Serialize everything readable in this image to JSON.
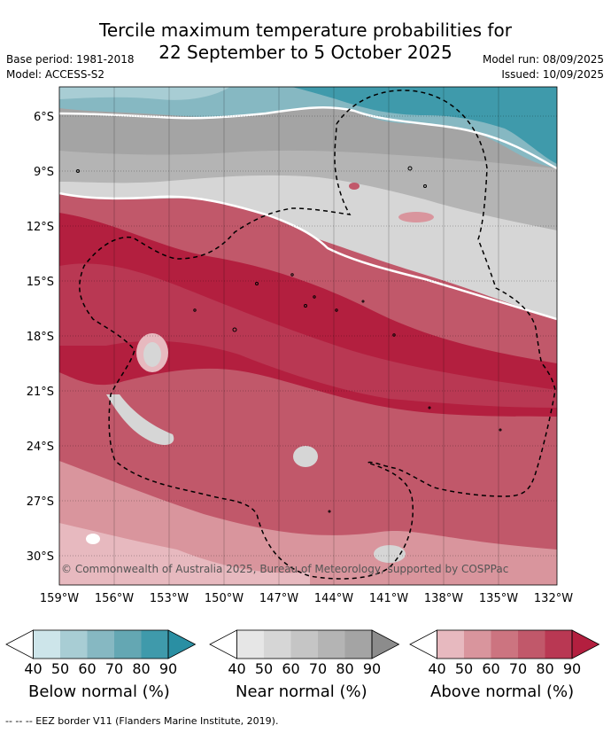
{
  "title": {
    "line1": "Tercile maximum temperature probabilities for",
    "line2": "22 September to 5 October 2025"
  },
  "meta": {
    "base_period": "Base period: 1981-2018",
    "model": "Model: ACCESS-S2",
    "model_run": "Model run: 08/09/2025",
    "issued": "Issued: 10/09/2025"
  },
  "map": {
    "lat_labels": [
      "6°S",
      "9°S",
      "12°S",
      "15°S",
      "18°S",
      "21°S",
      "24°S",
      "27°S",
      "30°S"
    ],
    "lon_labels": [
      "159°W",
      "156°W",
      "153°W",
      "150°W",
      "147°W",
      "144°W",
      "141°W",
      "138°W",
      "135°W",
      "132°W"
    ],
    "copyright": "© Commonwealth of Australia 2025, Bureau of Meteorology, supported by COSPPac"
  },
  "colorbars": [
    {
      "label": "Below normal (%)",
      "ticks": [
        "40",
        "50",
        "60",
        "70",
        "80",
        "90"
      ],
      "colors": [
        "#ffffff",
        "#cde5ea",
        "#a8cdd4",
        "#86b8c2",
        "#64a7b3",
        "#3f9aab",
        "#2a8fa3"
      ]
    },
    {
      "label": "Near normal (%)",
      "ticks": [
        "40",
        "50",
        "60",
        "70",
        "80",
        "90"
      ],
      "colors": [
        "#ffffff",
        "#e6e6e6",
        "#d6d6d6",
        "#c5c5c5",
        "#b4b4b4",
        "#a4a4a4",
        "#8c8c8c"
      ]
    },
    {
      "label": "Above normal (%)",
      "ticks": [
        "40",
        "50",
        "60",
        "70",
        "80",
        "90"
      ],
      "colors": [
        "#ffffff",
        "#e7b9bf",
        "#d9959d",
        "#cc7480",
        "#c1586a",
        "#b93853",
        "#b31f3f"
      ]
    }
  ],
  "footer": "--  --  -- EEZ border V11 (Flanders Marine Institute, 2019)."
}
